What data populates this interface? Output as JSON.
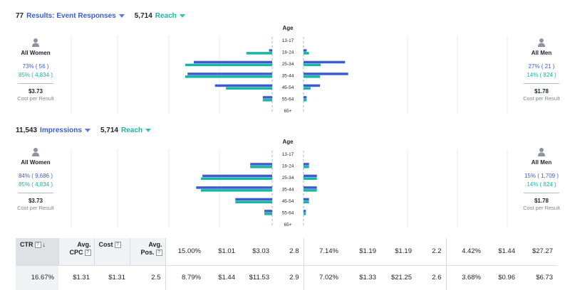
{
  "panels": [
    {
      "header": {
        "count": "77",
        "metric": "Results: Event Responses",
        "reach_count": "5,714",
        "reach_label": "Reach"
      },
      "axis_title": "Age",
      "left": {
        "name": "All Women",
        "pct_blue": "73% ( 56 )",
        "pct_green": "85% ( 4,834 )",
        "cost": "$3.73",
        "cost_label": "Cost per Result"
      },
      "right": {
        "name": "All Men",
        "pct_blue": "27% ( 21 )",
        "pct_green": "14% ( 824 )",
        "cost": "$1.78",
        "cost_label": "Cost per Result"
      },
      "chart_data": {
        "type": "bar",
        "categories": [
          "13-17",
          "18-24",
          "25-34",
          "35-44",
          "45-54",
          "55-64",
          "65+"
        ],
        "series": [
          {
            "side": "women",
            "metric": "results",
            "values": [
              0.0,
              0.04,
              1.0,
              1.08,
              0.73,
              0.12,
              0.0
            ],
            "color": "#3b5dcc"
          },
          {
            "side": "women",
            "metric": "reach",
            "values": [
              0.0,
              0.33,
              1.11,
              1.11,
              0.59,
              0.12,
              0.0
            ],
            "color": "#17b5a3"
          },
          {
            "side": "men",
            "metric": "results",
            "values": [
              0.0,
              0.04,
              0.53,
              0.57,
              0.21,
              0.04,
              0.0
            ],
            "color": "#3b5dcc"
          },
          {
            "side": "men",
            "metric": "reach",
            "values": [
              0.0,
              0.07,
              0.22,
              0.21,
              0.09,
              0.04,
              0.0
            ],
            "color": "#17b5a3"
          }
        ]
      }
    },
    {
      "header": {
        "count": "11,543",
        "metric": "Impressions",
        "reach_count": "5,714",
        "reach_label": "Reach"
      },
      "axis_title": "Age",
      "left": {
        "name": "All Women",
        "pct_blue": "84% ( 9,686 )",
        "pct_green": "85% ( 4,834 )",
        "cost": "$3.73",
        "cost_label": "Cost per Result"
      },
      "right": {
        "name": "All Men",
        "pct_blue": "15% ( 1,709 )",
        "pct_green": "14% ( 824 )",
        "cost": "$1.78",
        "cost_label": "Cost per Result"
      },
      "chart_data": {
        "type": "bar",
        "categories": [
          "13-17",
          "18-24",
          "25-34",
          "35-44",
          "45-54",
          "55-64",
          "65+"
        ],
        "series": [
          {
            "side": "women",
            "metric": "impressions",
            "values": [
              0.0,
              0.28,
              0.89,
              0.97,
              0.47,
              0.1,
              0.0
            ],
            "color": "#3b5dcc"
          },
          {
            "side": "women",
            "metric": "reach",
            "values": [
              0.0,
              0.28,
              0.91,
              0.91,
              0.47,
              0.1,
              0.0
            ],
            "color": "#17b5a3"
          },
          {
            "side": "men",
            "metric": "impressions",
            "values": [
              0.0,
              0.07,
              0.17,
              0.17,
              0.07,
              0.03,
              0.0
            ],
            "color": "#3b5dcc"
          },
          {
            "side": "men",
            "metric": "reach",
            "values": [
              0.0,
              0.07,
              0.17,
              0.17,
              0.07,
              0.03,
              0.0
            ],
            "color": "#17b5a3"
          }
        ]
      }
    }
  ],
  "table": {
    "headers": [
      {
        "label": "CTR",
        "help": "?",
        "sort": "↓"
      },
      {
        "label": "Avg. CPC",
        "help": "?"
      },
      {
        "label": "Cost",
        "help": "?"
      },
      {
        "label": "Avg. Pos.",
        "help": "?"
      }
    ],
    "row1": [
      "15.00%",
      "$1.01",
      "$3.03",
      "2.8",
      "7.14%",
      "$1.19",
      "$1.19",
      "2.2",
      "4.42%",
      "$1.44",
      "$27.27"
    ],
    "row2": [
      "16.67%",
      "$1.31",
      "$1.31",
      "2.5",
      "8.79%",
      "$1.44",
      "$11.53",
      "2.9",
      "7.02%",
      "$1.33",
      "$21.25",
      "2.6",
      "3.68%",
      "$0.96",
      "$6.73"
    ]
  }
}
